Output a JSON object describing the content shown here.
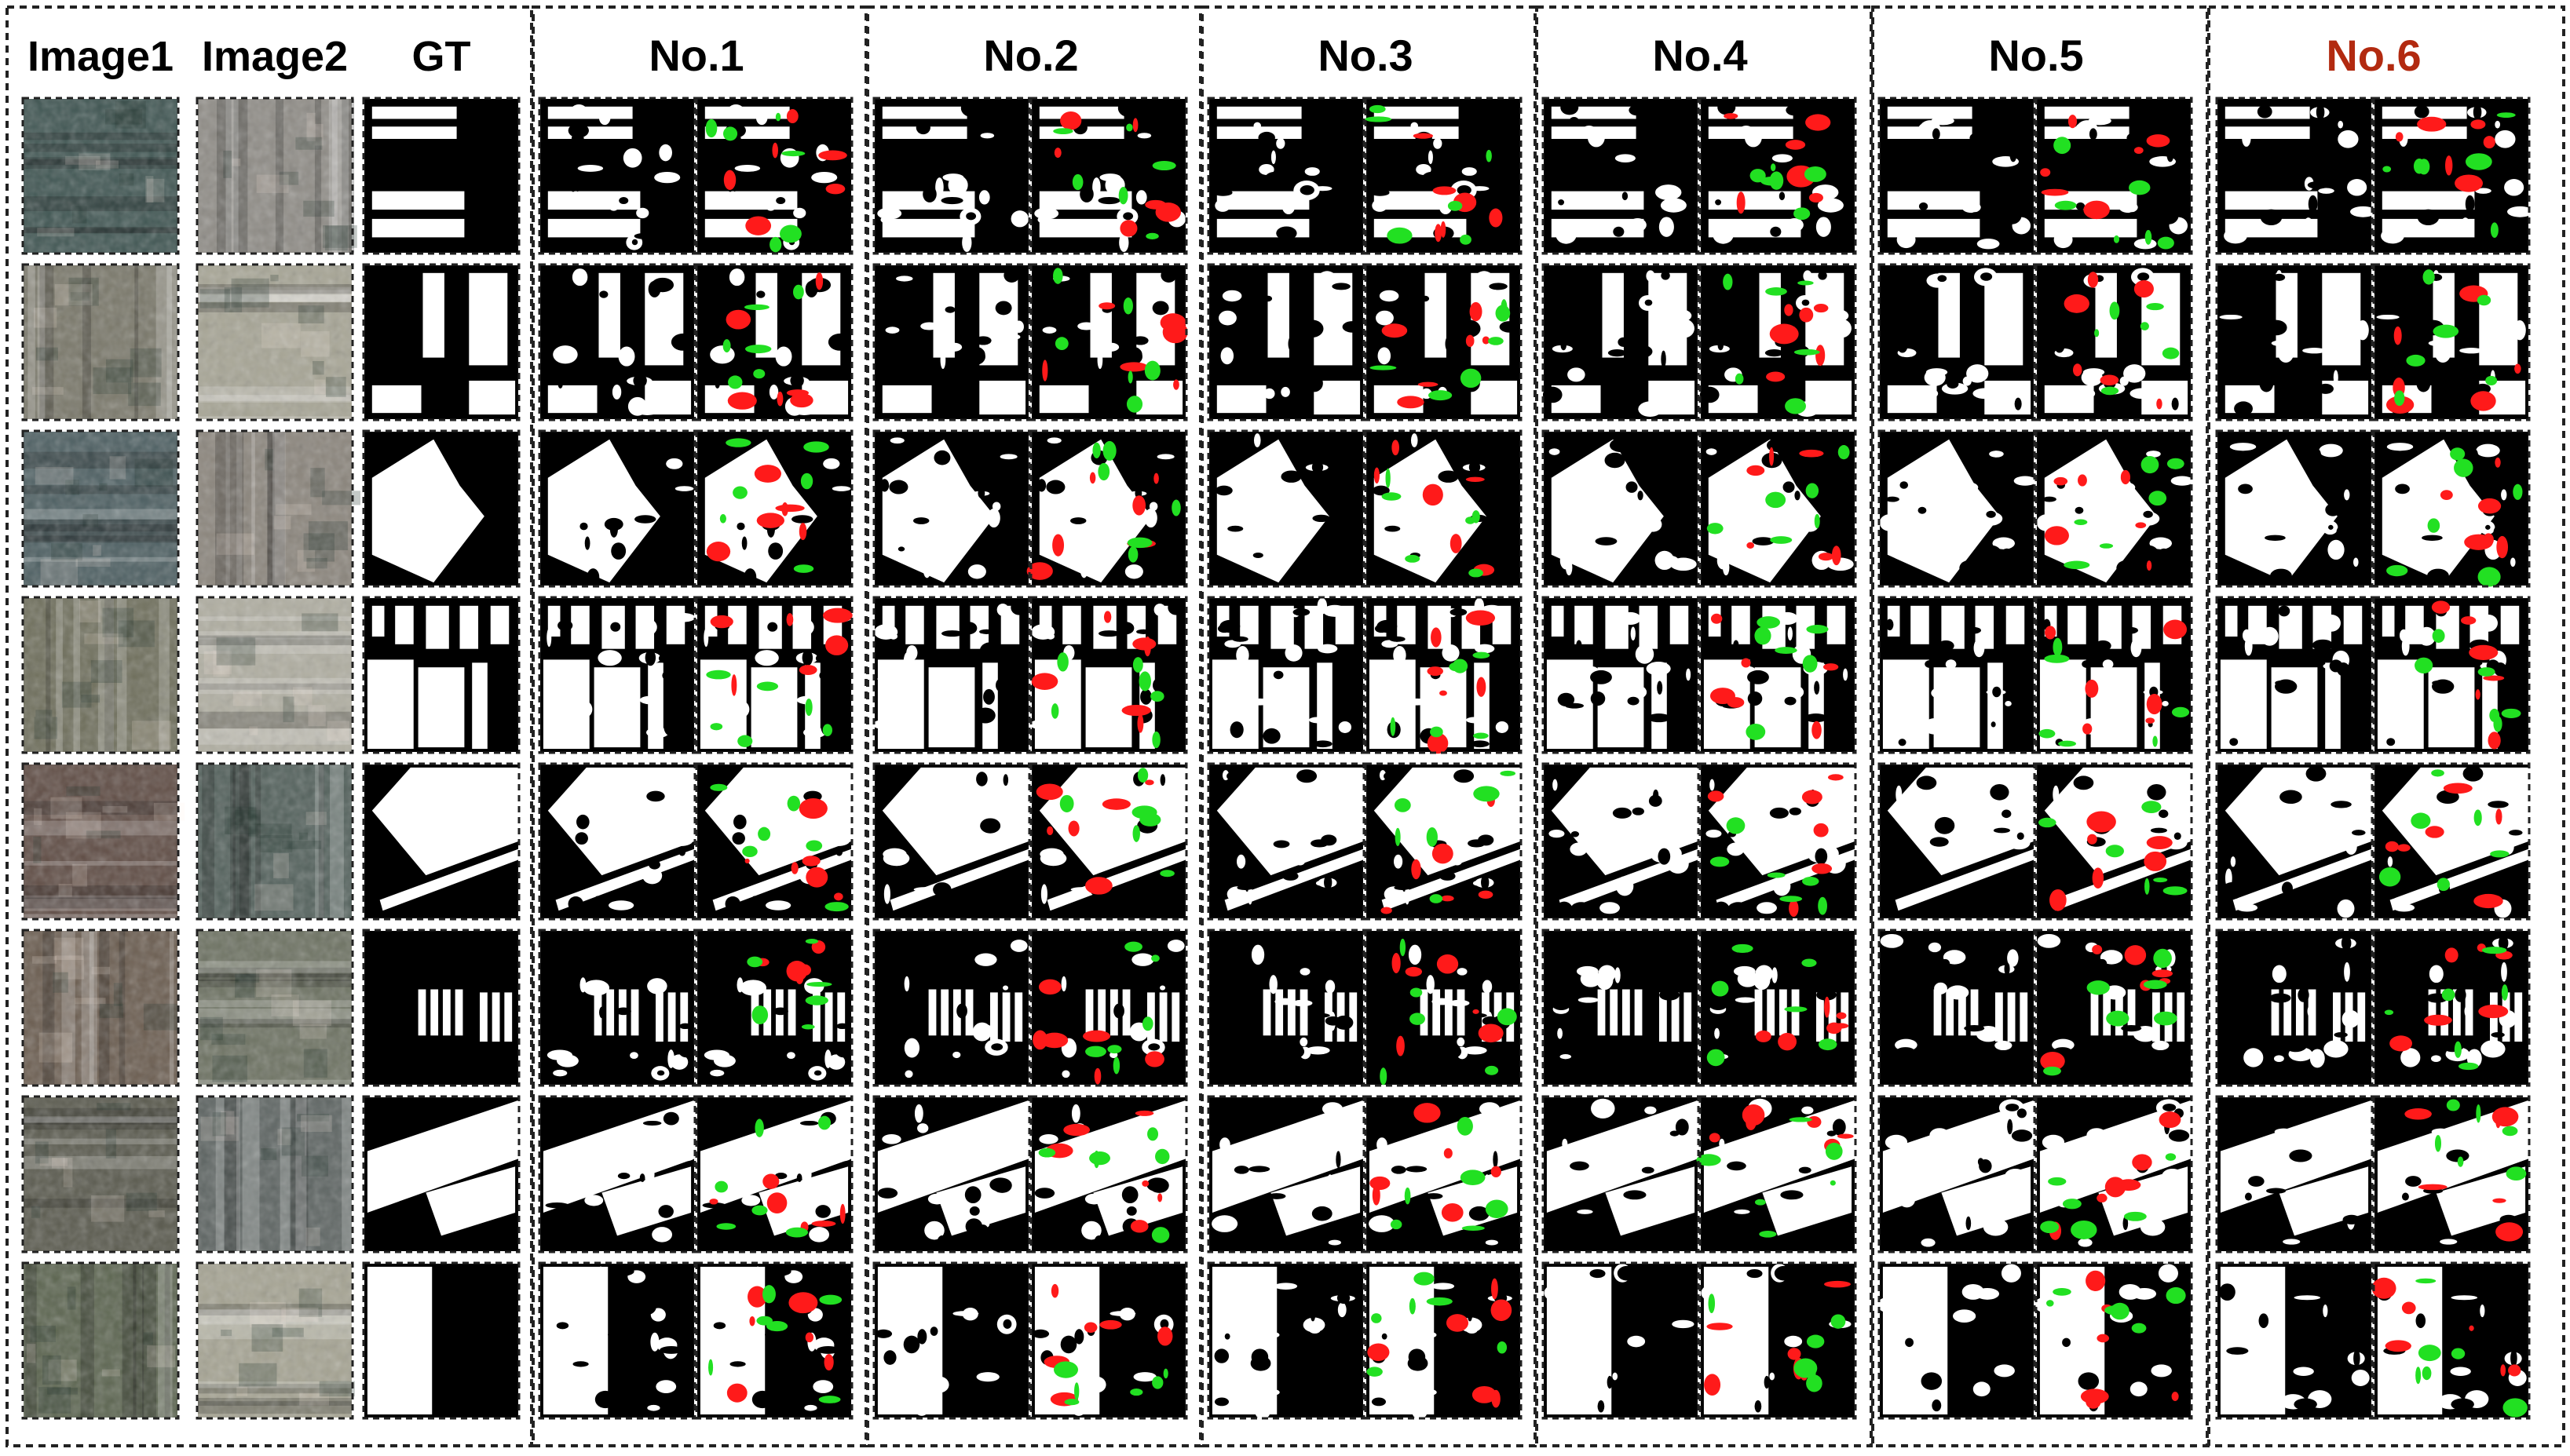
{
  "figure": {
    "headers": {
      "image1": "Image1",
      "image2": "Image2",
      "gt": "GT",
      "methods": [
        "No.1",
        "No.2",
        "No.3",
        "No.4",
        "No.5",
        "No.6"
      ]
    },
    "highlighted_method": "No.6",
    "colors": {
      "highlight_header": "#b22a10",
      "change_white": "#ffffff",
      "background_black": "#000000",
      "false_positive_red": "#ff1a1a",
      "false_negative_green": "#22e022",
      "border": "#222222"
    },
    "row_count": 8,
    "scenes": [
      {
        "row": 1,
        "image1_tone": "#3f5552",
        "image2_tone": "#8f8c86"
      },
      {
        "row": 2,
        "image1_tone": "#7a786a",
        "image2_tone": "#a7a595"
      },
      {
        "row": 3,
        "image1_tone": "#4d5f62",
        "image2_tone": "#8b857c"
      },
      {
        "row": 4,
        "image1_tone": "#6f6f5c",
        "image2_tone": "#b0aea1"
      },
      {
        "row": 5,
        "image1_tone": "#5f4c44",
        "image2_tone": "#52605b"
      },
      {
        "row": 6,
        "image1_tone": "#6b5d50",
        "image2_tone": "#6d7262"
      },
      {
        "row": 7,
        "image1_tone": "#5a5a4e",
        "image2_tone": "#5d6462"
      },
      {
        "row": 8,
        "image1_tone": "#5c6550",
        "image2_tone": "#a6a493"
      }
    ]
  }
}
